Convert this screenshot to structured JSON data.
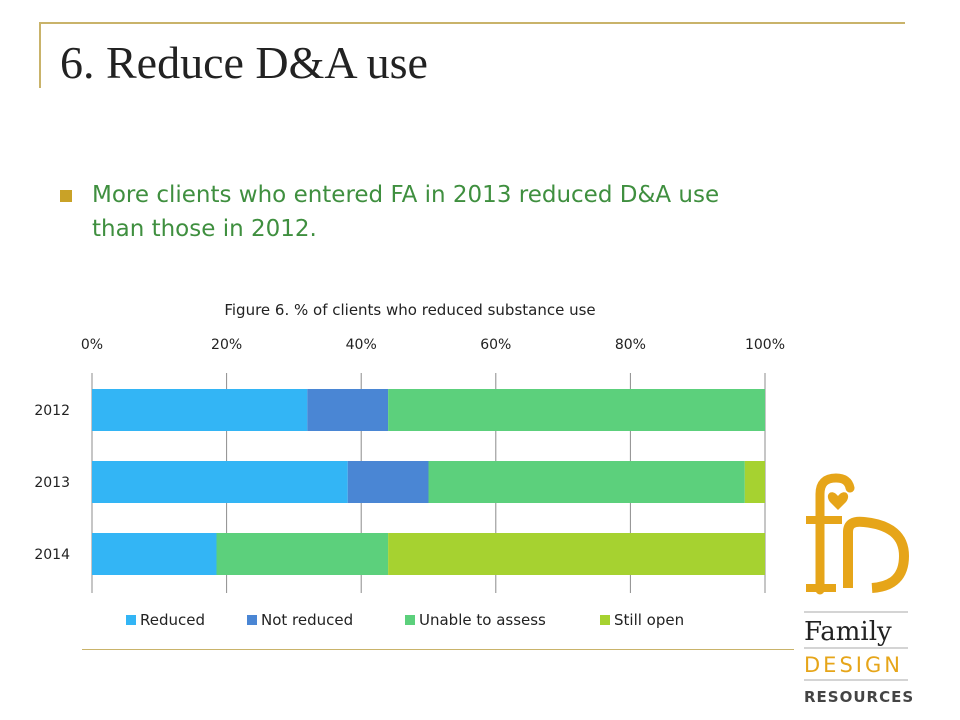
{
  "slide": {
    "title": "6. Reduce D&A use",
    "bullet": "More clients who entered FA in 2013  reduced D&A use than those in 2012."
  },
  "chart_data": {
    "type": "bar",
    "orientation": "horizontal",
    "stacked": true,
    "title": "Figure 6. % of clients who reduced substance use",
    "categories": [
      "2012",
      "2013",
      "2014"
    ],
    "series": [
      {
        "name": "Reduced",
        "values": [
          32,
          38,
          18.5
        ],
        "color": "#33b5f5"
      },
      {
        "name": "Not reduced",
        "values": [
          12,
          12,
          0
        ],
        "color": "#4a86d4"
      },
      {
        "name": "Unable to assess",
        "values": [
          56,
          47,
          25.5
        ],
        "color": "#5cd07c"
      },
      {
        "name": "Still open",
        "values": [
          0,
          3,
          56
        ],
        "color": "#a6d230"
      }
    ],
    "xlim": [
      0,
      100
    ],
    "xticks": [
      "0%",
      "20%",
      "40%",
      "60%",
      "80%",
      "100%"
    ],
    "xaxis_position": "top",
    "grid": true,
    "legend": "bottom"
  },
  "logo": {
    "monogram": "fr",
    "line1": "Family",
    "line2": "DESIGN",
    "line3": "RESOURCES",
    "colors": {
      "gold": "#e6a519",
      "dark": "#222222",
      "muted": "#444444"
    }
  }
}
